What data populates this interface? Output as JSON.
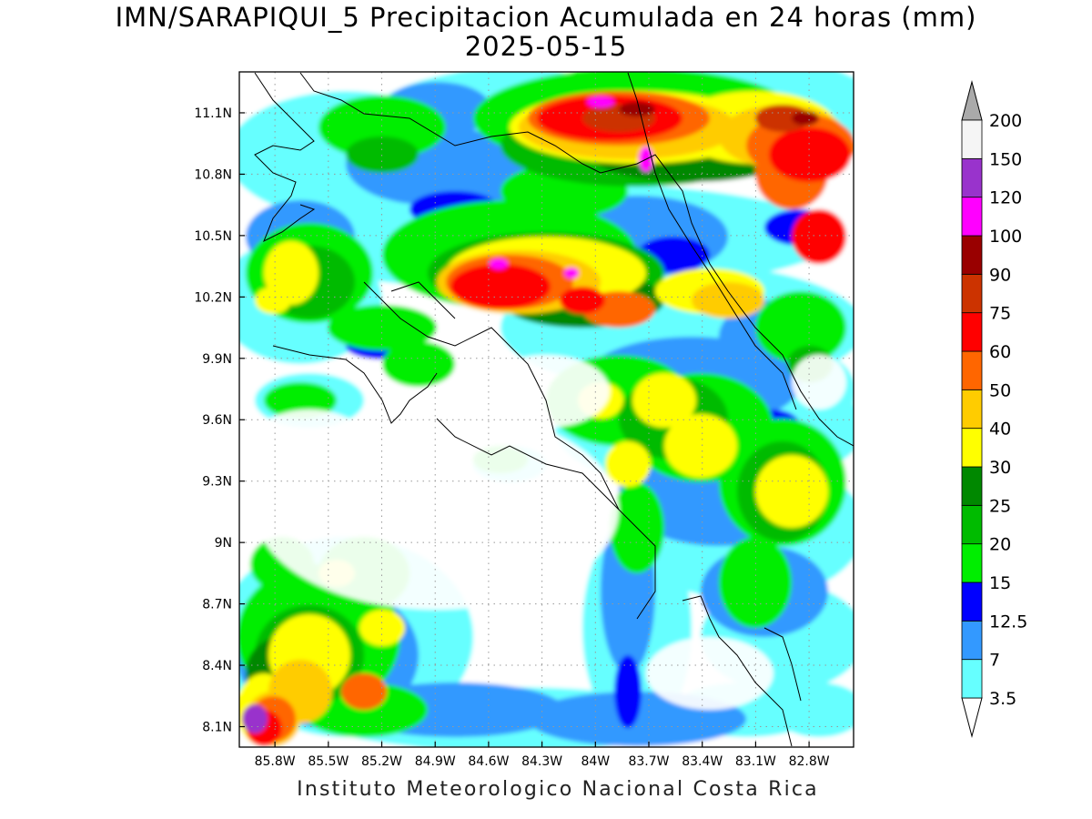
{
  "title": {
    "line1": "IMN/SARAPIQUI_5 Precipitacion Acumulada en 24 horas (mm)",
    "line2": "2025-05-15"
  },
  "footer": "Instituto Meteorologico Nacional Costa Rica",
  "map": {
    "lon_range": [
      -86.0,
      -82.55
    ],
    "lat_range": [
      8.0,
      11.3
    ],
    "lat_ticks": [
      {
        "value": 11.1,
        "label": "11.1N"
      },
      {
        "value": 10.8,
        "label": "10.8N"
      },
      {
        "value": 10.5,
        "label": "10.5N"
      },
      {
        "value": 10.2,
        "label": "10.2N"
      },
      {
        "value": 9.9,
        "label": "9.9N"
      },
      {
        "value": 9.6,
        "label": "9.6N"
      },
      {
        "value": 9.3,
        "label": "9.3N"
      },
      {
        "value": 9.0,
        "label": "9N"
      },
      {
        "value": 8.7,
        "label": "8.7N"
      },
      {
        "value": 8.4,
        "label": "8.4N"
      },
      {
        "value": 8.1,
        "label": "8.1N"
      }
    ],
    "lon_ticks": [
      {
        "value": -85.8,
        "label": "85.8W"
      },
      {
        "value": -85.5,
        "label": "85.5W"
      },
      {
        "value": -85.2,
        "label": "85.2W"
      },
      {
        "value": -84.9,
        "label": "84.9W"
      },
      {
        "value": -84.6,
        "label": "84.6W"
      },
      {
        "value": -84.3,
        "label": "84.3W"
      },
      {
        "value": -84.0,
        "label": "84W"
      },
      {
        "value": -83.7,
        "label": "83.7W"
      },
      {
        "value": -83.4,
        "label": "83.4W"
      },
      {
        "value": -83.1,
        "label": "83.1W"
      },
      {
        "value": -82.8,
        "label": "82.8W"
      }
    ],
    "grid": true
  },
  "colorbar": {
    "levels": [
      {
        "label": "3.5",
        "color": "#ffffff"
      },
      {
        "label": "7",
        "color": "#66ffff"
      },
      {
        "label": "12.5",
        "color": "#3399ff"
      },
      {
        "label": "15",
        "color": "#0000ff"
      },
      {
        "label": "20",
        "color": "#00ee00"
      },
      {
        "label": "25",
        "color": "#00bb00"
      },
      {
        "label": "30",
        "color": "#008800"
      },
      {
        "label": "40",
        "color": "#ffff00"
      },
      {
        "label": "50",
        "color": "#ffcc00"
      },
      {
        "label": "60",
        "color": "#ff6600"
      },
      {
        "label": "75",
        "color": "#ff0000"
      },
      {
        "label": "90",
        "color": "#cc3300"
      },
      {
        "label": "100",
        "color": "#990000"
      },
      {
        "label": "120",
        "color": "#ff00ff"
      },
      {
        "label": "150",
        "color": "#9933cc"
      },
      {
        "label": "200",
        "color": "#f5f5f5"
      }
    ],
    "over_color": "#aaaaaa"
  },
  "colors": {
    "white": "#ffffff",
    "cyan": "#66ffff",
    "lightblue": "#3399ff",
    "blue": "#0000ff",
    "green1": "#00ee00",
    "green2": "#00bb00",
    "green3": "#008800",
    "yellow": "#ffff00",
    "gold": "#ffcc00",
    "orange": "#ff6600",
    "red": "#ff0000",
    "darkorange": "#cc3300",
    "darkred": "#990000",
    "magenta": "#ff00ff",
    "purple": "#9933cc"
  }
}
